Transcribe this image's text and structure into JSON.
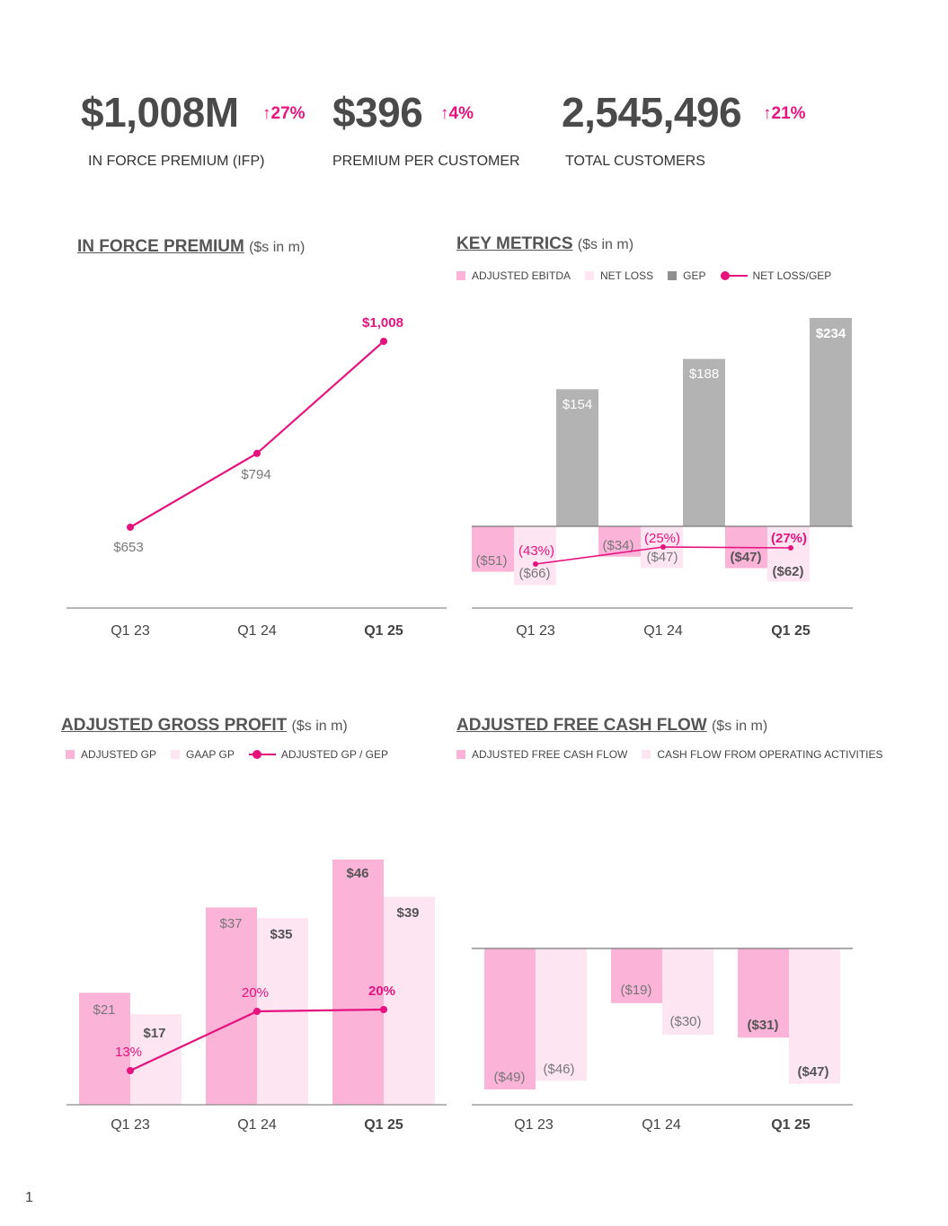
{
  "kpis": [
    {
      "value": "$1,008M",
      "change": "↑27%",
      "label": "IN FORCE PREMIUM (IFP)"
    },
    {
      "value": "$396",
      "change": "↑4%",
      "label": "PREMIUM PER CUSTOMER"
    },
    {
      "value": "2,545,496",
      "change": "↑21%",
      "label": "TOTAL CUSTOMERS"
    }
  ],
  "colors": {
    "pink": "#e6127e",
    "bar_pink": "#fbb3d7",
    "bar_light": "#fde6f1",
    "gray": "#b3b3b3",
    "text": "#555555",
    "axis": "#8c8c8c"
  },
  "page_number": "1",
  "chart_data": [
    {
      "id": "ifp",
      "type": "line",
      "title": "IN FORCE PREMIUM",
      "unit": "($s in m)",
      "categories": [
        "Q1 23",
        "Q1 24",
        "Q1 25"
      ],
      "values": [
        653,
        794,
        1008
      ],
      "labels": [
        "$653",
        "$794",
        "$1,008"
      ],
      "ylim": [
        500,
        1100
      ]
    },
    {
      "id": "key_metrics",
      "type": "bar",
      "title": "KEY METRICS",
      "unit": "($s in m)",
      "categories": [
        "Q1 23",
        "Q1 24",
        "Q1 25"
      ],
      "legend": [
        "ADJUSTED EBITDA",
        "NET LOSS",
        "GEP",
        "NET LOSS/GEP"
      ],
      "series": [
        {
          "name": "ADJUSTED EBITDA",
          "values": [
            -51,
            -34,
            -47
          ],
          "labels": [
            "($51)",
            "($34)",
            "($47)"
          ]
        },
        {
          "name": "NET LOSS",
          "values": [
            -66,
            -47,
            -62
          ],
          "labels": [
            "($66)",
            "($47)",
            "($62)"
          ]
        },
        {
          "name": "GEP",
          "values": [
            154,
            188,
            234
          ],
          "labels": [
            "$154",
            "$188",
            "$234"
          ]
        }
      ],
      "line": {
        "name": "NET LOSS/GEP",
        "values": [
          -43,
          -25,
          -27
        ],
        "labels": [
          "(43%)",
          "(25%)",
          "(27%)"
        ]
      },
      "ylim": [
        -80,
        240
      ]
    },
    {
      "id": "adj_gp",
      "type": "bar",
      "title": "ADJUSTED GROSS PROFIT",
      "unit": "($s in m)",
      "categories": [
        "Q1 23",
        "Q1 24",
        "Q1 25"
      ],
      "legend": [
        "ADJUSTED GP",
        "GAAP GP",
        "ADJUSTED GP / GEP"
      ],
      "series": [
        {
          "name": "ADJUSTED GP",
          "values": [
            21,
            37,
            46
          ],
          "labels": [
            "$21",
            "$37",
            "$46"
          ]
        },
        {
          "name": "GAAP GP",
          "values": [
            17,
            35,
            39
          ],
          "labels": [
            "$17",
            "$35",
            "$39"
          ]
        }
      ],
      "line": {
        "name": "ADJUSTED GP / GEP",
        "values": [
          13,
          20,
          20
        ],
        "labels": [
          "13%",
          "20%",
          "20%"
        ]
      },
      "ylim": [
        0,
        50
      ]
    },
    {
      "id": "adj_fcf",
      "type": "bar",
      "title": "ADJUSTED FREE CASH FLOW",
      "unit": "($s in m)",
      "categories": [
        "Q1 23",
        "Q1 24",
        "Q1 25"
      ],
      "legend": [
        "ADJUSTED FREE CASH FLOW",
        "CASH FLOW FROM OPERATING ACTIVITIES"
      ],
      "series": [
        {
          "name": "ADJUSTED FREE CASH FLOW",
          "values": [
            -49,
            -19,
            -31
          ],
          "labels": [
            "($49)",
            "($19)",
            "($31)"
          ]
        },
        {
          "name": "CASH FLOW FROM OPERATING ACTIVITIES",
          "values": [
            -46,
            -30,
            -47
          ],
          "labels": [
            "($46)",
            "($30)",
            "($47)"
          ]
        }
      ],
      "ylim": [
        -60,
        0
      ]
    }
  ]
}
